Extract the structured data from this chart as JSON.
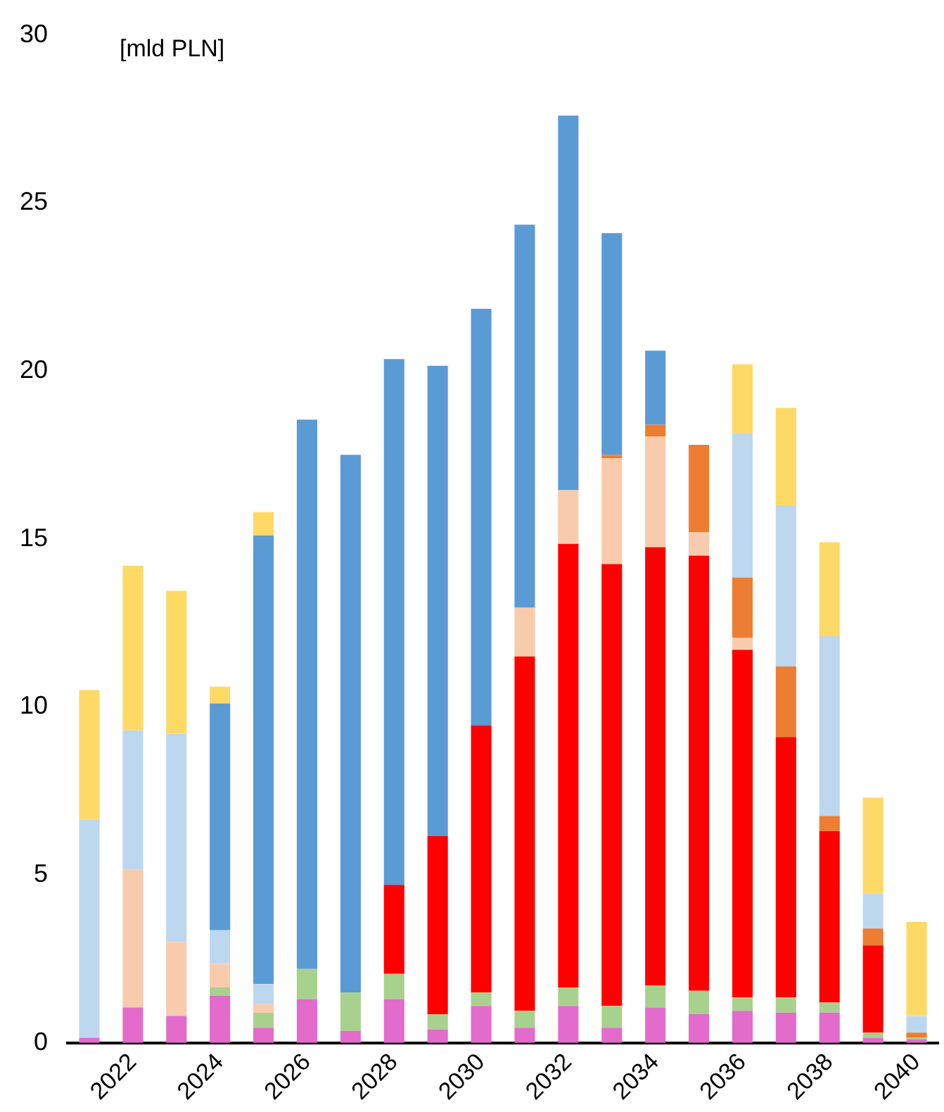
{
  "chart_data": {
    "type": "bar",
    "stacked": true,
    "ylabel": "[mld PLN]",
    "categories": [
      null,
      "2022",
      null,
      "2024",
      null,
      "2026",
      null,
      "2028",
      null,
      "2030",
      null,
      "2032",
      null,
      "2034",
      null,
      "2036",
      null,
      "2038",
      null,
      "2040"
    ],
    "series": [
      {
        "color": "#e36bcb",
        "values": [
          0.15,
          1.05,
          0.8,
          1.4,
          0.45,
          1.3,
          0.35,
          1.3,
          0.4,
          1.1,
          0.45,
          1.1,
          0.45,
          1.05,
          0.85,
          0.95,
          0.9,
          0.9,
          0.15,
          0.1
        ]
      },
      {
        "color": "#a9d18e",
        "values": [
          null,
          null,
          null,
          0.25,
          0.45,
          0.9,
          1.15,
          0.75,
          0.45,
          0.4,
          0.5,
          0.55,
          0.65,
          0.65,
          0.7,
          0.4,
          0.45,
          0.3,
          0.15,
          0.05
        ]
      },
      {
        "color": "#ff0000",
        "values": [
          null,
          null,
          null,
          null,
          null,
          null,
          null,
          2.65,
          5.3,
          7.95,
          10.55,
          13.2,
          13.15,
          13.05,
          12.95,
          10.35,
          7.75,
          5.1,
          2.6,
          null
        ]
      },
      {
        "color": "#f8cbad",
        "values": [
          null,
          4.1,
          2.2,
          0.7,
          0.25,
          null,
          null,
          null,
          null,
          null,
          1.45,
          1.6,
          3.15,
          3.3,
          0.7,
          0.35,
          null,
          null,
          null,
          null
        ]
      },
      {
        "color": "#ed7d31",
        "values": [
          null,
          null,
          null,
          null,
          null,
          null,
          null,
          null,
          null,
          null,
          null,
          null,
          0.1,
          0.35,
          2.6,
          1.8,
          2.1,
          0.45,
          0.5,
          0.15
        ]
      },
      {
        "color": "#bdd7ee",
        "values": [
          6.5,
          4.15,
          6.2,
          1.0,
          0.6,
          null,
          null,
          null,
          null,
          null,
          null,
          null,
          null,
          null,
          null,
          4.3,
          4.8,
          5.35,
          1.05,
          0.5
        ]
      },
      {
        "color": "#5b9bd5",
        "values": [
          null,
          null,
          null,
          6.75,
          13.35,
          16.35,
          16.0,
          15.65,
          14.0,
          12.4,
          11.4,
          11.15,
          6.6,
          2.2,
          null,
          null,
          null,
          null,
          null,
          null
        ]
      },
      {
        "color": "#ffd966",
        "values": [
          3.85,
          4.9,
          4.25,
          0.5,
          0.7,
          null,
          null,
          null,
          null,
          null,
          null,
          null,
          null,
          null,
          null,
          2.05,
          2.9,
          2.8,
          2.85,
          2.8
        ]
      }
    ],
    "ylim": [
      0,
      30
    ],
    "yticks": [
      0,
      5,
      10,
      15,
      20,
      25,
      30
    ],
    "grid": false,
    "legend": false
  }
}
